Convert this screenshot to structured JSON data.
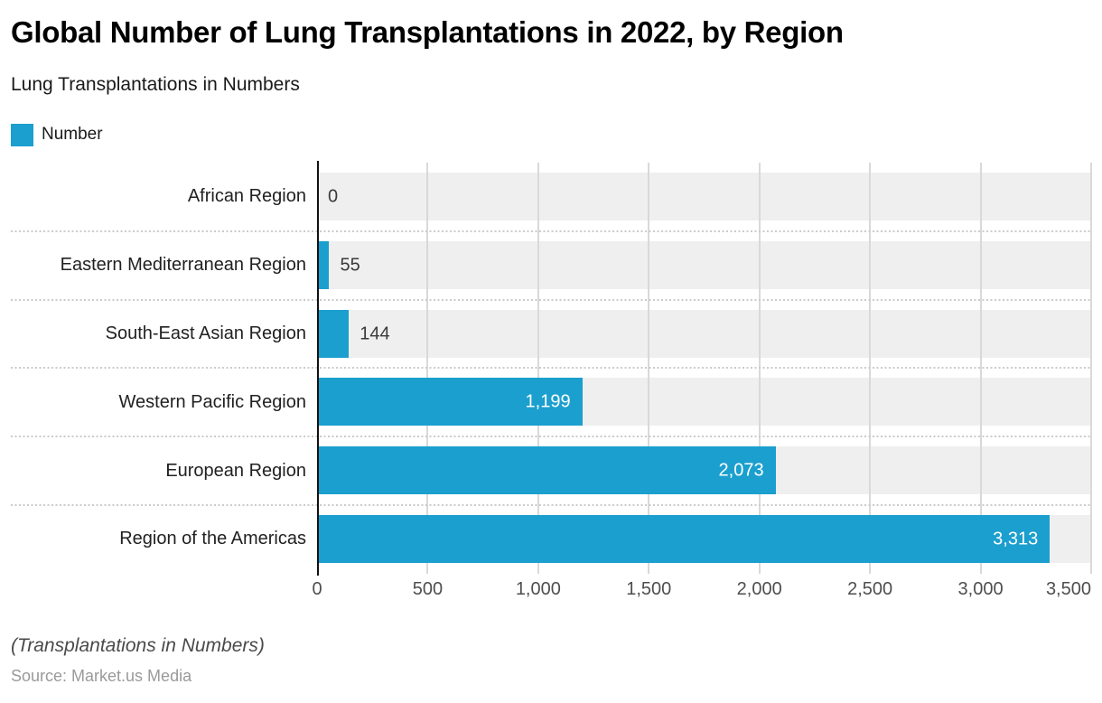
{
  "header": {
    "title": "Global Number of Lung Transplantations in 2022, by Region",
    "subtitle": "Lung Transplantations in Numbers"
  },
  "legend": {
    "label": "Number",
    "color": "#1b9fce"
  },
  "chart_data": {
    "type": "bar",
    "orientation": "horizontal",
    "title": "Global Number of Lung Transplantations in 2022, by Region",
    "series_name": "Number",
    "categories": [
      "African Region",
      "Eastern Mediterranean Region",
      "South-East Asian Region",
      "Western Pacific Region",
      "European Region",
      "Region of the Americas"
    ],
    "values": [
      0,
      55,
      144,
      1199,
      2073,
      3313
    ],
    "value_labels": [
      "0",
      "55",
      "144",
      "1,199",
      "2,073",
      "3,313"
    ],
    "xlabel": "",
    "ylabel": "",
    "xlim": [
      0,
      3500
    ],
    "x_ticks": [
      0,
      500,
      1000,
      1500,
      2000,
      2500,
      3000,
      3500
    ],
    "x_tick_labels": [
      "0",
      "500",
      "1,000",
      "1,500",
      "2,000",
      "2,500",
      "3,000",
      "3,500"
    ],
    "grid": true,
    "legend_position": "top-left",
    "bar_color": "#1b9fce",
    "band_color": "#efefef"
  },
  "footer": {
    "note": "(Transplantations in Numbers)",
    "source": "Source: Market.us Media"
  }
}
